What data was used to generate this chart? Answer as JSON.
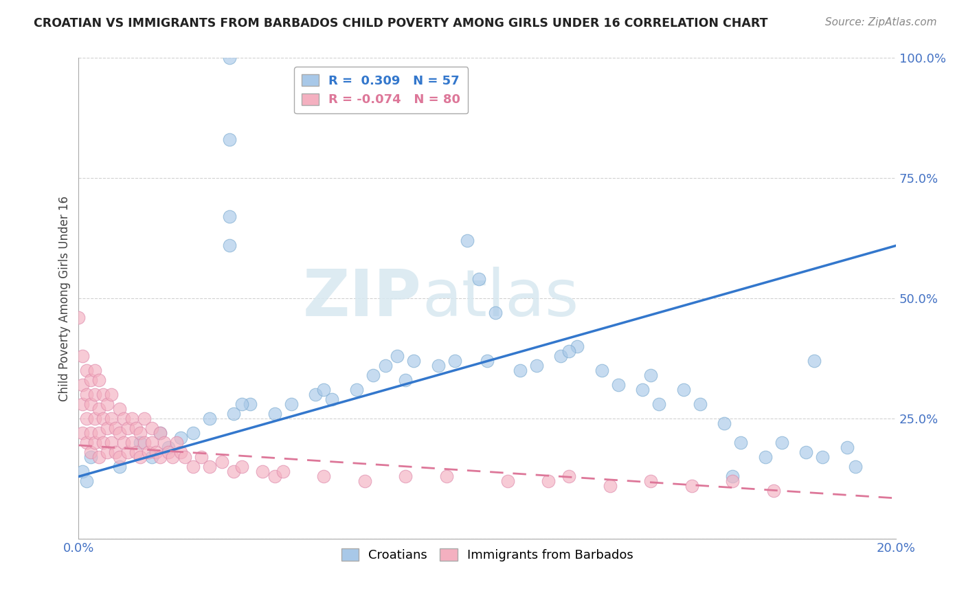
{
  "title": "CROATIAN VS IMMIGRANTS FROM BARBADOS CHILD POVERTY AMONG GIRLS UNDER 16 CORRELATION CHART",
  "source": "Source: ZipAtlas.com",
  "ylabel": "Child Poverty Among Girls Under 16",
  "xlim": [
    0.0,
    0.2
  ],
  "ylim": [
    0.0,
    1.0
  ],
  "xticks": [
    0.0,
    0.05,
    0.1,
    0.15,
    0.2
  ],
  "xticklabels": [
    "0.0%",
    "",
    "",
    "",
    "20.0%"
  ],
  "yticks": [
    0.0,
    0.25,
    0.5,
    0.75,
    1.0
  ],
  "yticklabels": [
    "",
    "25.0%",
    "50.0%",
    "75.0%",
    "100.0%"
  ],
  "blue_R": 0.309,
  "blue_N": 57,
  "pink_R": -0.074,
  "pink_N": 80,
  "blue_color": "#a8c8e8",
  "pink_color": "#f4b0c0",
  "blue_line_color": "#3377cc",
  "pink_line_color": "#dd7799",
  "legend_label_blue": "Croatians",
  "legend_label_pink": "Immigrants from Barbados",
  "watermark_ZIP": "ZIP",
  "watermark_atlas": "atlas",
  "blue_line_x0": 0.0,
  "blue_line_y0": 0.13,
  "blue_line_x1": 0.2,
  "blue_line_y1": 0.61,
  "pink_line_x0": 0.0,
  "pink_line_y0": 0.195,
  "pink_line_x1": 0.2,
  "pink_line_y1": 0.085,
  "blue_scatter_x": [
    0.037,
    0.037,
    0.037,
    0.037,
    0.001,
    0.002,
    0.003,
    0.018,
    0.022,
    0.025,
    0.028,
    0.032,
    0.038,
    0.042,
    0.048,
    0.052,
    0.058,
    0.062,
    0.068,
    0.072,
    0.075,
    0.078,
    0.082,
    0.088,
    0.092,
    0.095,
    0.098,
    0.102,
    0.108,
    0.112,
    0.118,
    0.122,
    0.128,
    0.132,
    0.138,
    0.142,
    0.148,
    0.152,
    0.158,
    0.162,
    0.168,
    0.172,
    0.178,
    0.182,
    0.188,
    0.01,
    0.015,
    0.02,
    0.04,
    0.06,
    0.08,
    0.1,
    0.12,
    0.14,
    0.16,
    0.18,
    0.19
  ],
  "blue_scatter_y": [
    1.0,
    0.83,
    0.67,
    0.61,
    0.14,
    0.12,
    0.17,
    0.17,
    0.19,
    0.21,
    0.22,
    0.25,
    0.26,
    0.28,
    0.26,
    0.28,
    0.3,
    0.29,
    0.31,
    0.34,
    0.36,
    0.38,
    0.37,
    0.36,
    0.37,
    0.62,
    0.54,
    0.47,
    0.35,
    0.36,
    0.38,
    0.4,
    0.35,
    0.32,
    0.31,
    0.28,
    0.31,
    0.28,
    0.24,
    0.2,
    0.17,
    0.2,
    0.18,
    0.17,
    0.19,
    0.15,
    0.2,
    0.22,
    0.28,
    0.31,
    0.33,
    0.37,
    0.39,
    0.34,
    0.13,
    0.37,
    0.15
  ],
  "pink_scatter_x": [
    0.0,
    0.001,
    0.001,
    0.001,
    0.001,
    0.002,
    0.002,
    0.002,
    0.002,
    0.003,
    0.003,
    0.003,
    0.003,
    0.004,
    0.004,
    0.004,
    0.004,
    0.005,
    0.005,
    0.005,
    0.005,
    0.006,
    0.006,
    0.006,
    0.007,
    0.007,
    0.007,
    0.008,
    0.008,
    0.008,
    0.009,
    0.009,
    0.01,
    0.01,
    0.01,
    0.011,
    0.011,
    0.012,
    0.012,
    0.013,
    0.013,
    0.014,
    0.014,
    0.015,
    0.015,
    0.016,
    0.016,
    0.017,
    0.018,
    0.018,
    0.019,
    0.02,
    0.02,
    0.021,
    0.022,
    0.023,
    0.024,
    0.025,
    0.026,
    0.028,
    0.03,
    0.032,
    0.035,
    0.038,
    0.04,
    0.045,
    0.048,
    0.05,
    0.06,
    0.07,
    0.08,
    0.09,
    0.105,
    0.115,
    0.12,
    0.13,
    0.14,
    0.15,
    0.16,
    0.17
  ],
  "pink_scatter_y": [
    0.46,
    0.22,
    0.28,
    0.32,
    0.38,
    0.2,
    0.25,
    0.3,
    0.35,
    0.18,
    0.22,
    0.28,
    0.33,
    0.2,
    0.25,
    0.3,
    0.35,
    0.17,
    0.22,
    0.27,
    0.33,
    0.2,
    0.25,
    0.3,
    0.18,
    0.23,
    0.28,
    0.2,
    0.25,
    0.3,
    0.18,
    0.23,
    0.17,
    0.22,
    0.27,
    0.2,
    0.25,
    0.18,
    0.23,
    0.2,
    0.25,
    0.18,
    0.23,
    0.17,
    0.22,
    0.2,
    0.25,
    0.18,
    0.2,
    0.23,
    0.18,
    0.17,
    0.22,
    0.2,
    0.18,
    0.17,
    0.2,
    0.18,
    0.17,
    0.15,
    0.17,
    0.15,
    0.16,
    0.14,
    0.15,
    0.14,
    0.13,
    0.14,
    0.13,
    0.12,
    0.13,
    0.13,
    0.12,
    0.12,
    0.13,
    0.11,
    0.12,
    0.11,
    0.12,
    0.1
  ]
}
